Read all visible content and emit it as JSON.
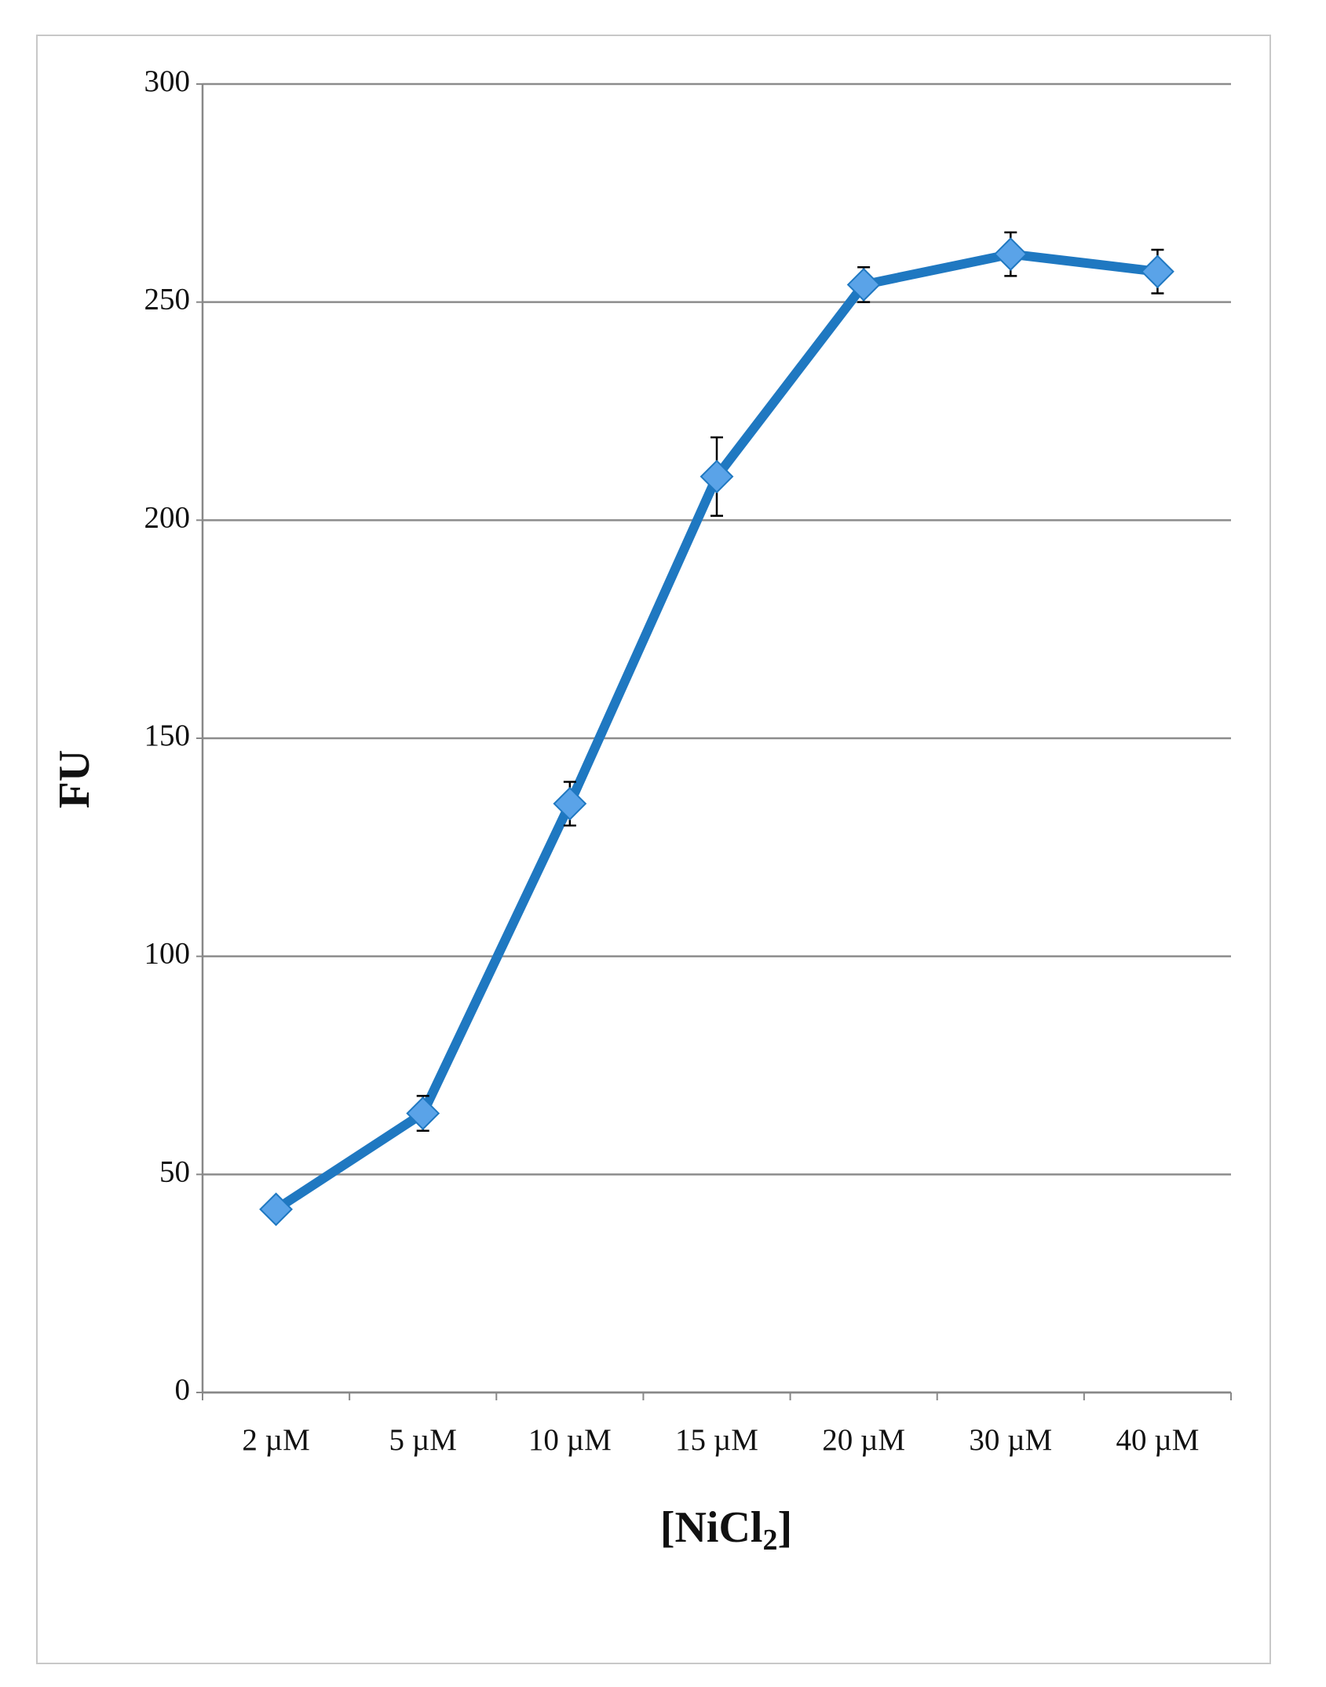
{
  "chart_data": {
    "type": "line",
    "ylabel": "FU",
    "xlabel": [
      "[NiCl",
      "2",
      "]"
    ],
    "categories": [
      "2 µM",
      "5 µM",
      "10 µM",
      "15 µM",
      "20 µM",
      "30 µM",
      "40 µM"
    ],
    "series": [
      {
        "color": "#1f78c1",
        "marker_color": "#5aa3e8",
        "values": [
          42,
          64,
          135,
          210,
          254,
          261,
          257
        ],
        "errors": [
          2,
          4,
          5,
          9,
          4,
          5,
          5
        ]
      }
    ],
    "ylim": [
      0,
      300
    ],
    "yticks": [
      0,
      50,
      100,
      150,
      200,
      250,
      300
    ],
    "grid": true
  }
}
